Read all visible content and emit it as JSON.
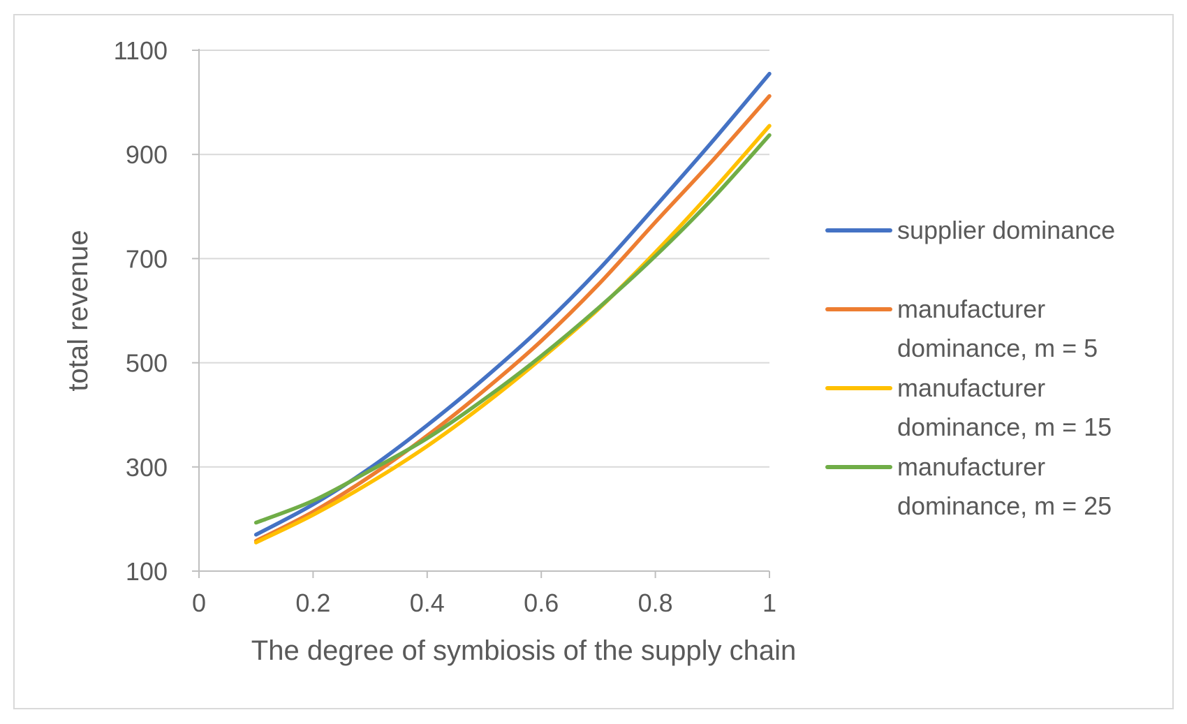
{
  "chart_data": {
    "type": "line",
    "title": "",
    "xlabel": "The degree of symbiosis of the supply chain",
    "ylabel": "total revenue",
    "xlim": [
      0,
      1
    ],
    "ylim": [
      100,
      1100
    ],
    "xticks": [
      0,
      0.2,
      0.4,
      0.6,
      0.8,
      1
    ],
    "xtick_labels": [
      "0",
      "0.2",
      "0.4",
      "0.6",
      "0.8",
      "1"
    ],
    "yticks": [
      100,
      300,
      500,
      700,
      900,
      1100
    ],
    "ytick_labels": [
      "100",
      "300",
      "500",
      "700",
      "900",
      "1100"
    ],
    "grid": "horizontal",
    "legend_position": "right",
    "series": [
      {
        "name": "supplier dominance",
        "color": "#4472C4",
        "x": [
          0.1,
          0.2,
          0.3,
          0.4,
          0.5,
          0.6,
          0.7,
          0.8,
          0.9,
          1.0
        ],
        "y": [
          170,
          228,
          298,
          380,
          470,
          568,
          678,
          800,
          925,
          1055
        ]
      },
      {
        "name": "manufacturer dominance, m = 5",
        "color": "#ED7D31",
        "x": [
          0.1,
          0.2,
          0.3,
          0.4,
          0.5,
          0.6,
          0.7,
          0.8,
          0.9,
          1.0
        ],
        "y": [
          158,
          214,
          282,
          360,
          447,
          542,
          650,
          770,
          888,
          1012
        ]
      },
      {
        "name": "manufacturer dominance, m = 15",
        "color": "#FFC000",
        "x": [
          0.1,
          0.2,
          0.3,
          0.4,
          0.5,
          0.6,
          0.7,
          0.8,
          0.9,
          1.0
        ],
        "y": [
          155,
          208,
          270,
          340,
          420,
          508,
          603,
          712,
          830,
          955
        ]
      },
      {
        "name": "manufacturer dominance, m = 25",
        "color": "#70AD47",
        "x": [
          0.1,
          0.2,
          0.3,
          0.4,
          0.5,
          0.6,
          0.7,
          0.8,
          0.9,
          1.0
        ],
        "y": [
          193,
          235,
          293,
          355,
          430,
          513,
          605,
          705,
          815,
          937
        ]
      }
    ],
    "legend_lines": [
      [
        "supplier dominance"
      ],
      [
        "manufacturer",
        "dominance, m = 5"
      ],
      [
        "manufacturer",
        "dominance, m = 15"
      ],
      [
        "manufacturer",
        "dominance, m = 25"
      ]
    ]
  }
}
